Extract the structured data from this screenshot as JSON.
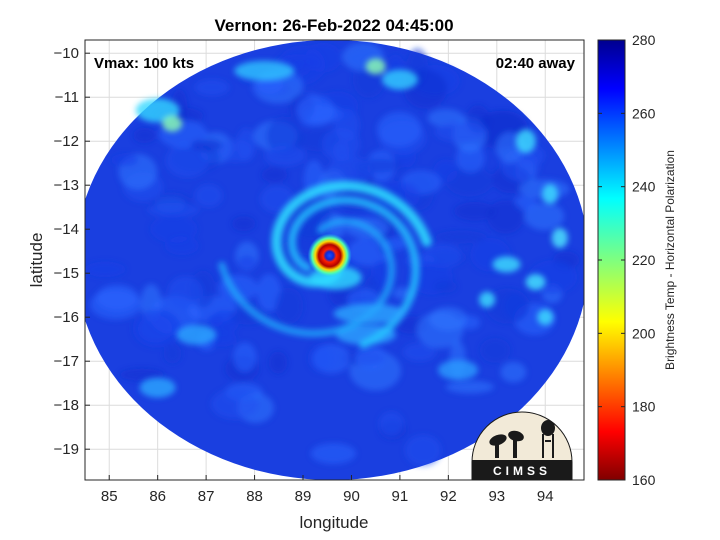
{
  "chart_data": {
    "type": "heatmap",
    "title": "Vernon: 26-Feb-2022 04:45:00",
    "xlabel": "longitude",
    "ylabel": "latitude",
    "xlim": [
      84.5,
      94.8
    ],
    "ylim": [
      -19.7,
      -9.7
    ],
    "xticks": [
      85,
      86,
      87,
      88,
      89,
      90,
      91,
      92,
      93,
      94
    ],
    "yticks": [
      -10,
      -11,
      -12,
      -13,
      -14,
      -15,
      -16,
      -17,
      -18,
      -19
    ],
    "grid": true,
    "annotations": {
      "vmax": "Vmax: 100 kts",
      "away": "02:40 away"
    },
    "colorbar": {
      "label": "Brightness Temp - Horizontal Polarization",
      "range": [
        160,
        280
      ],
      "ticks": [
        280,
        260,
        240,
        220,
        200,
        180,
        160
      ],
      "colormap": "jet"
    },
    "swath": {
      "center": [
        89.6,
        -14.7
      ],
      "lon_radius": 5.3,
      "lat_radius": 5.0
    },
    "eye": {
      "lon": 89.55,
      "lat": -14.6
    },
    "background_temp_k": 262
  },
  "logo": {
    "text": "CIMSS"
  },
  "colors": {
    "swath_base": "#1a3fe0",
    "cold_core": "#b00000",
    "warm_edge": "#1a5cff"
  }
}
